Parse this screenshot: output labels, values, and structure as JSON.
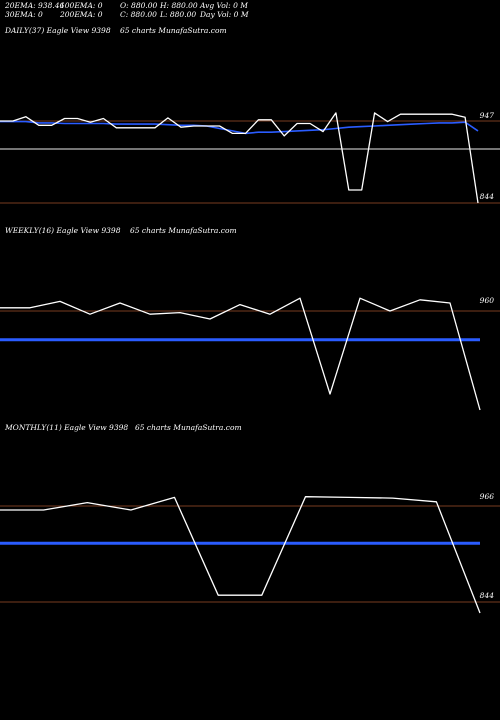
{
  "header": {
    "ema20": "20EMA: 938.46",
    "ema100": "100EMA: 0",
    "open": "O: 880.00",
    "high": "H: 880.00",
    "avg_vol": "Avg Vol: 0  M",
    "ema30": "30EMA: 0",
    "ema200": "200EMA: 0",
    "close": "C: 880.00",
    "low": "L: 880.00",
    "day_vol": "Day Vol: 0  M"
  },
  "colors": {
    "price_line": "#ffffff",
    "ema_line": "#2a5cff",
    "level_line": "#a0522d",
    "mid_line": "#bbbbbb"
  },
  "chart_data": [
    {
      "type": "line",
      "title": "DAILY(37) Eagle  View  9398",
      "subtitle": "65 charts MunafaSutra.com",
      "ylabels": [
        "947",
        "844"
      ],
      "series": [
        {
          "values": [
            949,
            949,
            956,
            942,
            942,
            953,
            953,
            947,
            953,
            938,
            938,
            938,
            938,
            954,
            939,
            941,
            941,
            941,
            929,
            929,
            951,
            951,
            925,
            945,
            945,
            932,
            962,
            838,
            838,
            962,
            948,
            960,
            960,
            960,
            960,
            960,
            955,
            817
          ]
        },
        {
          "values": [
            948,
            948,
            948,
            946,
            946,
            945,
            945,
            945,
            945,
            944,
            944,
            944,
            944,
            943,
            942,
            942,
            941,
            937,
            933,
            929,
            931,
            931,
            932,
            933,
            934,
            935,
            937,
            939,
            940,
            941,
            942,
            943,
            944,
            945,
            946,
            946,
            947,
            933
          ]
        }
      ]
    },
    {
      "type": "line",
      "title": "WEEKLY(16) Eagle  View  9398",
      "subtitle": "65 charts MunafaSutra.com",
      "ylabels": [
        "960"
      ],
      "series": [
        {
          "values": [
            962,
            962,
            966,
            958,
            965,
            958,
            959,
            955,
            964,
            958,
            968,
            908,
            968,
            960,
            967,
            965,
            898
          ]
        },
        {
          "values": [
            942,
            942,
            942,
            942,
            942,
            942,
            942,
            942,
            942,
            942,
            942,
            942,
            942,
            942,
            942,
            942,
            942
          ]
        }
      ]
    },
    {
      "type": "line",
      "title": "MONTHLY(11) Eagle  View  9398",
      "subtitle": "65 charts MunafaSutra.com",
      "ylabels": [
        "966",
        "844"
      ],
      "series": [
        {
          "values": [
            970,
            970,
            980,
            970,
            987,
            855,
            855,
            988,
            987,
            986,
            981,
            831
          ]
        },
        {
          "values": [
            925,
            925,
            925,
            925,
            925,
            925,
            925,
            925,
            925,
            925,
            925,
            925
          ]
        }
      ]
    }
  ]
}
